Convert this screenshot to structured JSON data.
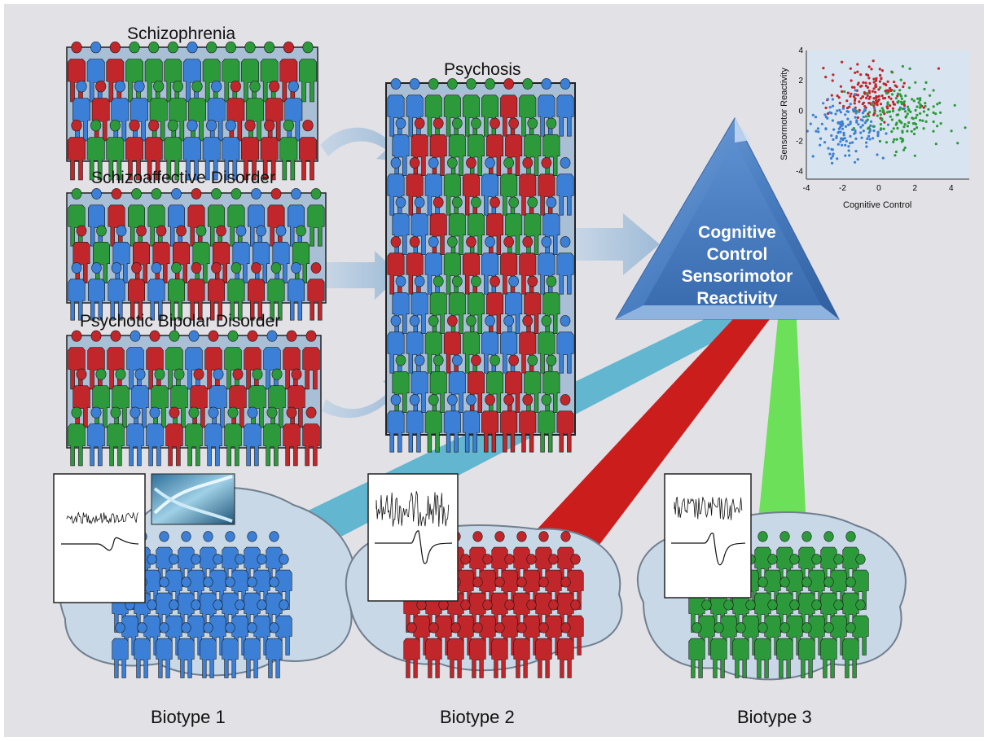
{
  "colors": {
    "background": "#e2e1e6",
    "blue": "#3b7fd6",
    "red": "#c0262a",
    "green": "#2c9a3a",
    "panel": "#a9bfd6",
    "triangle": "#4a7fc2",
    "beam_blue": "#5bb3cf",
    "beam_red": "#cc1d1d",
    "beam_green": "#6de05a",
    "brain": "#c9d8e6"
  },
  "groups": [
    {
      "label": "Schizophrenia"
    },
    {
      "label": "Schizoaffective Disorder"
    },
    {
      "label": "Psychotic Bipolar Disorder"
    }
  ],
  "merged": {
    "label": "Psychosis"
  },
  "triangle": {
    "lines": [
      "Cognitive",
      "Control",
      "Sensorimotor",
      "Reactivity"
    ]
  },
  "biotypes": [
    {
      "label": "Biotype 1",
      "color": "blue"
    },
    {
      "label": "Biotype 2",
      "color": "red"
    },
    {
      "label": "Biotype 3",
      "color": "green"
    }
  ],
  "icons": [
    "person-icon",
    "dna-icon",
    "arrow-icon",
    "brain-icon"
  ],
  "chart_data": {
    "type": "scatter",
    "xlabel": "Cognitive Control",
    "ylabel": "Sensormotor Reactivity",
    "xlim": [
      -4,
      5
    ],
    "ylim": [
      -4.5,
      4
    ],
    "xticks": [
      "-4",
      "-2",
      "0",
      "2",
      "4"
    ],
    "yticks": [
      "4",
      "2",
      "0",
      "-2",
      "-4"
    ],
    "grid": false,
    "series": [
      {
        "color": "red",
        "center": [
          -0.5,
          1.2
        ],
        "spread": [
          1.0,
          0.8
        ]
      },
      {
        "color": "blue",
        "center": [
          -1.8,
          -1.3
        ],
        "spread": [
          1.0,
          1.0
        ]
      },
      {
        "color": "green",
        "center": [
          1.4,
          -0.4
        ],
        "spread": [
          1.1,
          1.2
        ]
      }
    ]
  }
}
